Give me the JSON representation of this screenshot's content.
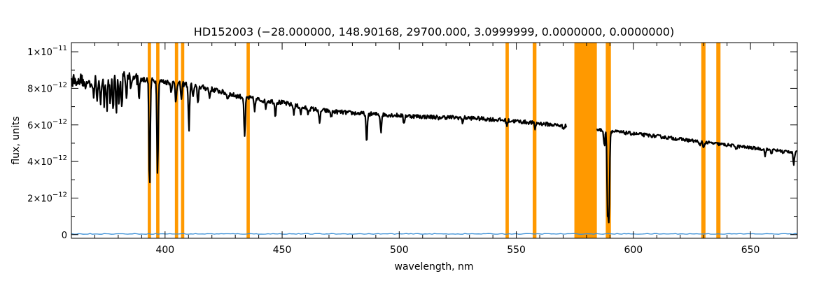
{
  "chart_data": {
    "type": "line",
    "title": "HD152003    (−28.000000, 148.90168, 29700.000, 3.0999999, 0.0000000, 0.0000000)",
    "xlabel": "wavelength, nm",
    "ylabel": "flux, units",
    "xlim": [
      360,
      670
    ],
    "ylim": [
      -2e-13,
      1.05e-11
    ],
    "x_ticks": [
      400,
      450,
      500,
      550,
      600,
      650
    ],
    "x_tick_labels": [
      "400",
      "450",
      "500",
      "550",
      "600",
      "650"
    ],
    "y_ticks": [
      0,
      2e-12,
      4e-12,
      6e-12,
      8e-12,
      1e-11
    ],
    "y_tick_labels": [
      {
        "mantissa": "0",
        "exponent": ""
      },
      {
        "mantissa": "2×10",
        "exponent": "−12"
      },
      {
        "mantissa": "4×10",
        "exponent": "−12"
      },
      {
        "mantissa": "6×10",
        "exponent": "−12"
      },
      {
        "mantissa": "8×10",
        "exponent": "−12"
      },
      {
        "mantissa": "1×10",
        "exponent": "−11"
      }
    ],
    "masked_bands": [
      [
        392.6,
        394.0
      ],
      [
        396.2,
        397.6
      ],
      [
        404.2,
        405.6
      ],
      [
        406.8,
        408.2
      ],
      [
        434.8,
        436.2
      ],
      [
        545.4,
        546.8
      ],
      [
        557.0,
        558.6
      ],
      [
        574.8,
        584.4
      ],
      [
        588.2,
        590.4
      ],
      [
        629.0,
        630.8
      ],
      [
        635.4,
        637.2
      ]
    ],
    "series": [
      {
        "color": "#000000",
        "gap": [
          571.5,
          584.2
        ],
        "continuum": [
          [
            360,
            8.5e-12
          ],
          [
            365,
            8.38e-12
          ],
          [
            370,
            8.36e-12
          ],
          [
            375,
            8.6e-12
          ],
          [
            380,
            8.78e-12
          ],
          [
            390,
            8.5e-12
          ],
          [
            400,
            8.35e-12
          ],
          [
            410,
            8.2e-12
          ],
          [
            420,
            7.95e-12
          ],
          [
            430,
            7.6e-12
          ],
          [
            440,
            7.38e-12
          ],
          [
            450,
            7.22e-12
          ],
          [
            460,
            6.92e-12
          ],
          [
            470,
            6.75e-12
          ],
          [
            480,
            6.65e-12
          ],
          [
            490,
            6.58e-12
          ],
          [
            500,
            6.52e-12
          ],
          [
            510,
            6.45e-12
          ],
          [
            520,
            6.42e-12
          ],
          [
            530,
            6.38e-12
          ],
          [
            540,
            6.3e-12
          ],
          [
            550,
            6.2e-12
          ],
          [
            560,
            6.08e-12
          ],
          [
            570,
            5.95e-12
          ],
          [
            575,
            5.9e-12
          ],
          [
            585,
            5.73e-12
          ],
          [
            590,
            5.66e-12
          ],
          [
            600,
            5.52e-12
          ],
          [
            610,
            5.38e-12
          ],
          [
            620,
            5.22e-12
          ],
          [
            630,
            5.05e-12
          ],
          [
            640,
            4.9e-12
          ],
          [
            650,
            4.75e-12
          ],
          [
            660,
            4.62e-12
          ],
          [
            670,
            4.5e-12
          ]
        ],
        "absorption_lines": [
          [
            363.0,
            0.03
          ],
          [
            366.0,
            0.05
          ],
          [
            369.5,
            0.09
          ],
          [
            371.0,
            0.12
          ],
          [
            372.5,
            0.14
          ],
          [
            374.0,
            0.16
          ],
          [
            375.2,
            0.2
          ],
          [
            376.6,
            0.18
          ],
          [
            377.8,
            0.24
          ],
          [
            379.2,
            0.22
          ],
          [
            380.3,
            0.15
          ],
          [
            381.5,
            0.2
          ],
          [
            383.5,
            0.14
          ],
          [
            385.5,
            0.08
          ],
          [
            388.9,
            0.11
          ],
          [
            393.4,
            0.7
          ],
          [
            396.8,
            0.6
          ],
          [
            402.6,
            0.05
          ],
          [
            404.6,
            0.12
          ],
          [
            407.0,
            0.1
          ],
          [
            410.2,
            0.3
          ],
          [
            412.0,
            0.08
          ],
          [
            414.0,
            0.12
          ],
          [
            419.0,
            0.06
          ],
          [
            426.7,
            0.04
          ],
          [
            434.0,
            0.3
          ],
          [
            438.3,
            0.08
          ],
          [
            443.0,
            0.05
          ],
          [
            447.1,
            0.1
          ],
          [
            455.0,
            0.06
          ],
          [
            458.0,
            0.05
          ],
          [
            461.0,
            0.04
          ],
          [
            466.0,
            0.12
          ],
          [
            471.0,
            0.05
          ],
          [
            486.1,
            0.25
          ],
          [
            492.2,
            0.14
          ],
          [
            502.0,
            0.07
          ],
          [
            516.9,
            0.03
          ],
          [
            527.0,
            0.04
          ],
          [
            546.0,
            0.04
          ],
          [
            558.0,
            0.05
          ],
          [
            570.0,
            0.02
          ],
          [
            587.6,
            0.15
          ],
          [
            589.0,
            0.75
          ],
          [
            589.6,
            0.8
          ],
          [
            628.5,
            0.05
          ],
          [
            630.0,
            0.06
          ],
          [
            644.0,
            0.03
          ],
          [
            656.3,
            0.07
          ],
          [
            659.0,
            0.04
          ],
          [
            664.0,
            0.03
          ],
          [
            668.5,
            0.15
          ]
        ]
      },
      {
        "color": "#3a8fd6",
        "value_range": [
          2e-14,
          6e-14
        ]
      }
    ]
  }
}
